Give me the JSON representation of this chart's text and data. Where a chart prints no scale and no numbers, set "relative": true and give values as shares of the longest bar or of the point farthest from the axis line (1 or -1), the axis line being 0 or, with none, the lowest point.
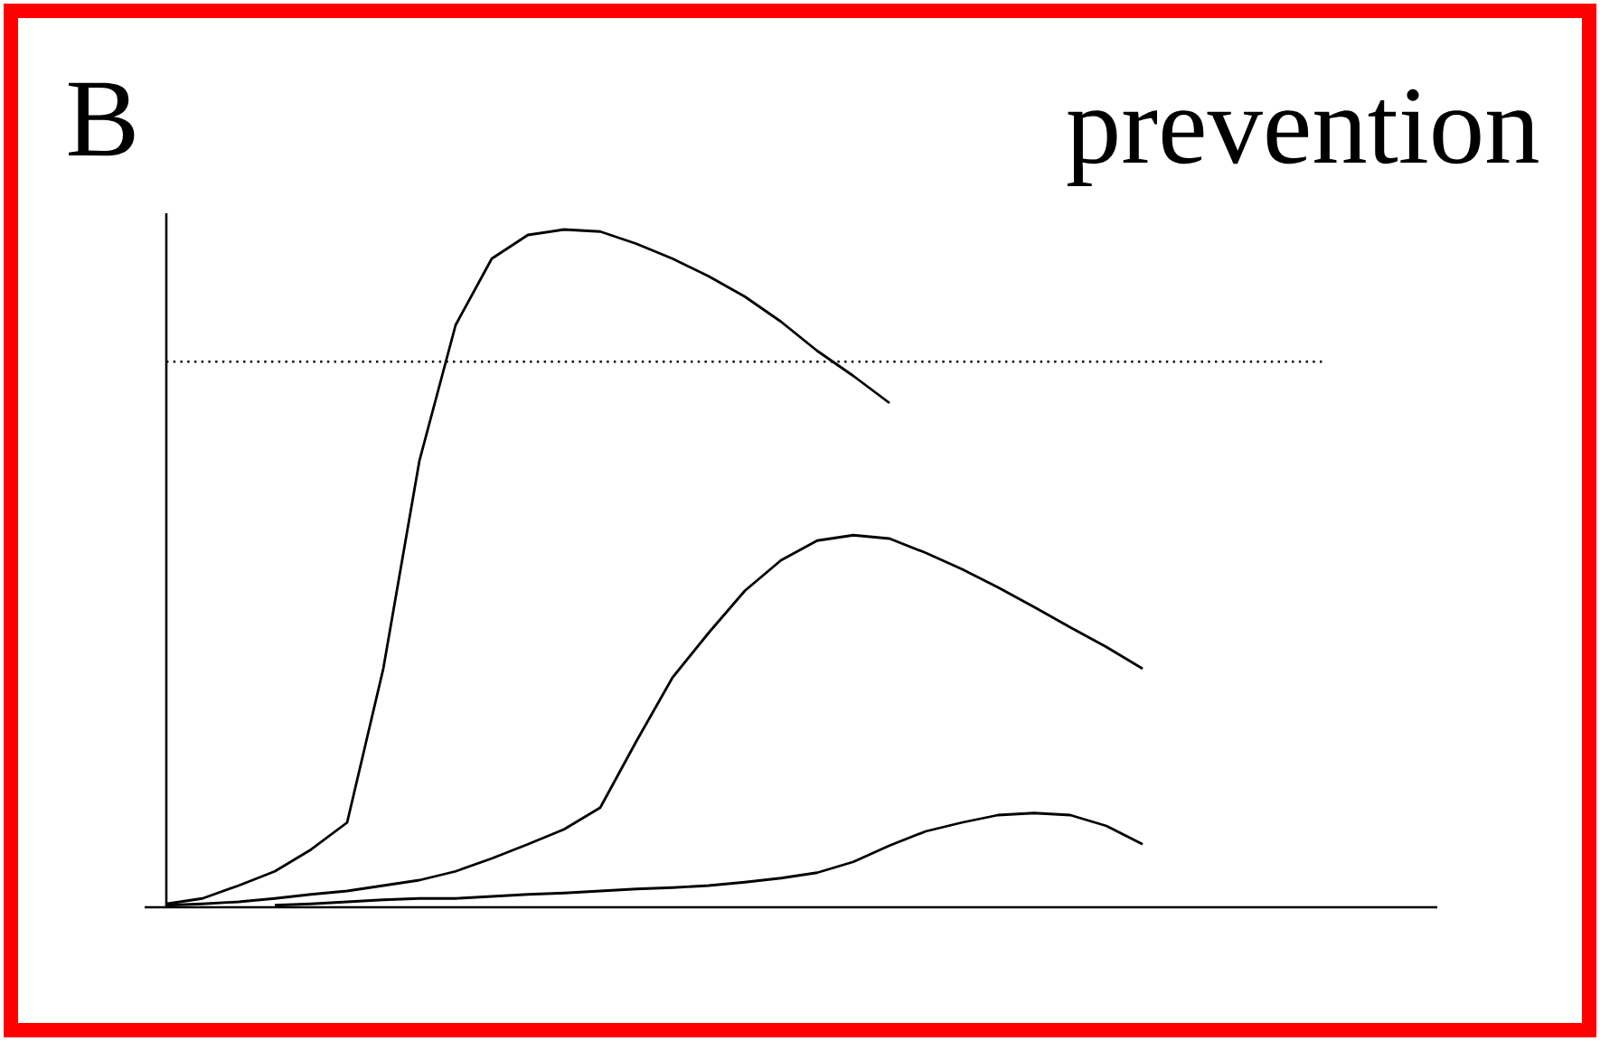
{
  "chart_data": {
    "type": "line",
    "title": "prevention",
    "annotations": [
      "B"
    ],
    "relative": true,
    "marker": "none",
    "line_style": "solid",
    "categories": [
      null,
      null,
      null,
      null,
      null,
      null,
      null,
      null,
      null,
      null,
      null,
      null,
      null,
      null,
      null,
      null,
      null,
      null,
      null,
      null,
      null,
      null,
      null,
      null,
      null,
      null,
      null,
      null
    ],
    "series": [
      {
        "color": "#000000",
        "values": [
          0.005,
          0.013,
          0.032,
          0.053,
          0.085,
          0.125,
          0.352,
          0.659,
          0.859,
          0.957,
          0.992,
          1.0,
          0.997,
          0.979,
          0.957,
          0.931,
          0.901,
          0.864,
          0.821,
          0.784,
          0.744,
          null,
          null,
          null,
          null,
          null,
          null,
          null
        ]
      },
      {
        "color": "#000000",
        "values": [
          0.003,
          0.005,
          0.008,
          0.013,
          0.019,
          0.024,
          0.032,
          0.04,
          0.053,
          0.072,
          0.093,
          0.115,
          0.147,
          0.245,
          0.339,
          0.405,
          0.467,
          0.512,
          0.541,
          0.549,
          0.544,
          0.523,
          0.499,
          0.472,
          0.443,
          0.413,
          0.384,
          0.352
        ]
      },
      {
        "color": "#000000",
        "values": [
          null,
          null,
          null,
          0.003,
          0.005,
          0.008,
          0.011,
          0.013,
          0.013,
          0.016,
          0.019,
          0.021,
          0.024,
          0.027,
          0.029,
          0.032,
          0.037,
          0.043,
          0.051,
          0.067,
          0.091,
          0.112,
          0.125,
          0.136,
          0.139,
          0.136,
          0.12,
          0.093
        ]
      }
    ],
    "ref_lines": [
      {
        "axis": "y",
        "value": 0.805,
        "color": "#000000",
        "line_style": "dotted"
      }
    ]
  }
}
